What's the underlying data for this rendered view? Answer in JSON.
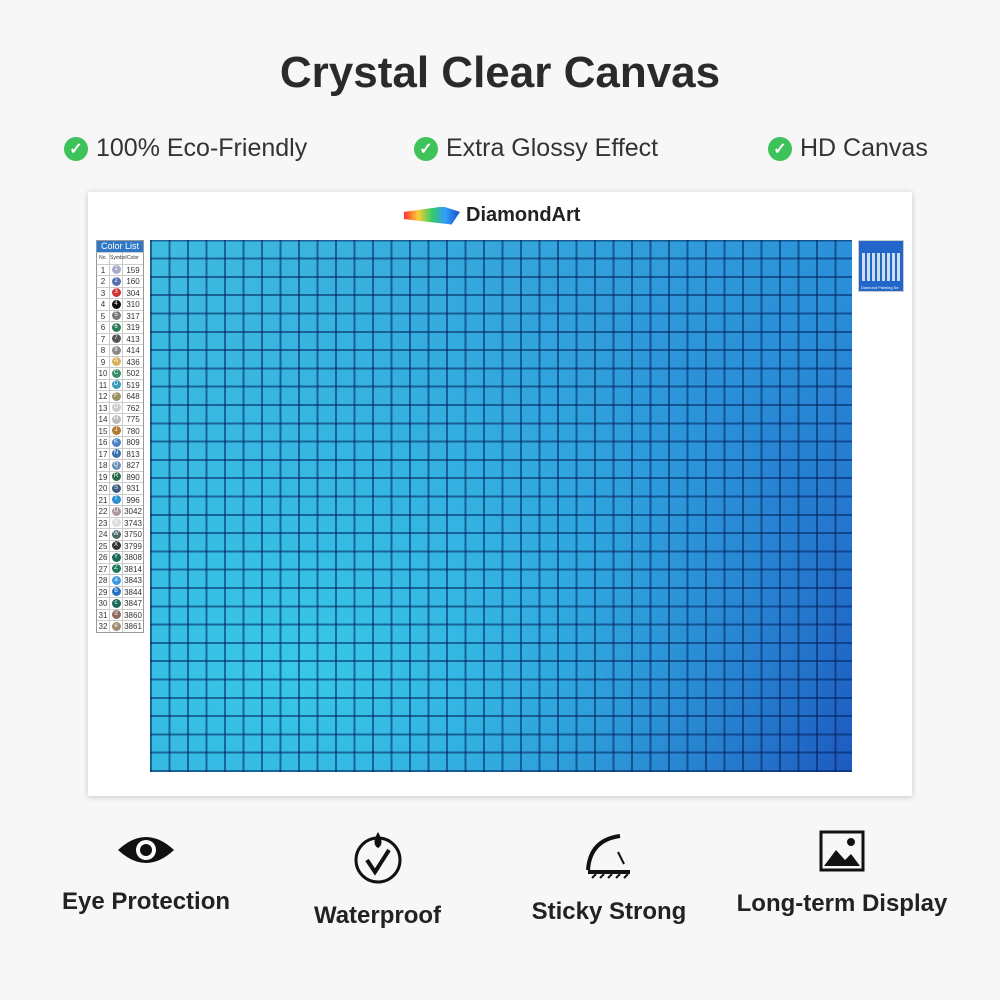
{
  "title": "Crystal Clear Canvas",
  "features": [
    "100% Eco-Friendly",
    "Extra Glossy Effect",
    "HD Canvas"
  ],
  "brand": "DiamondArt",
  "color_list": {
    "title": "Color List",
    "headers": [
      "No.",
      "Symbol",
      "Color"
    ],
    "rows": [
      [
        "1",
        "1",
        "159"
      ],
      [
        "2",
        "2",
        "160"
      ],
      [
        "3",
        "3",
        "304"
      ],
      [
        "4",
        "4",
        "310"
      ],
      [
        "5",
        "5",
        "317"
      ],
      [
        "6",
        "6",
        "319"
      ],
      [
        "7",
        "7",
        "413"
      ],
      [
        "8",
        "8",
        "414"
      ],
      [
        "9",
        "A",
        "436"
      ],
      [
        "10",
        "C",
        "502"
      ],
      [
        "11",
        "D",
        "519"
      ],
      [
        "12",
        "F",
        "648"
      ],
      [
        "13",
        "G",
        "762"
      ],
      [
        "14",
        "H",
        "775"
      ],
      [
        "15",
        "J",
        "780"
      ],
      [
        "16",
        "K",
        "809"
      ],
      [
        "17",
        "N",
        "813"
      ],
      [
        "18",
        "Q",
        "827"
      ],
      [
        "19",
        "R",
        "890"
      ],
      [
        "20",
        "S",
        "931"
      ],
      [
        "21",
        "T",
        "996"
      ],
      [
        "22",
        "U",
        "3042"
      ],
      [
        "23",
        "V",
        "3743"
      ],
      [
        "24",
        "W",
        "3750"
      ],
      [
        "25",
        "X",
        "3799"
      ],
      [
        "26",
        "Y",
        "3808"
      ],
      [
        "27",
        "Z",
        "3814"
      ],
      [
        "28",
        "a",
        "3843"
      ],
      [
        "29",
        "b",
        "3844"
      ],
      [
        "30",
        "c",
        "3847"
      ],
      [
        "31",
        "d",
        "3860"
      ],
      [
        "32",
        "e",
        "3861"
      ]
    ]
  },
  "dot_colors": [
    "#aac",
    "#5570b0",
    "#c33",
    "#111",
    "#777",
    "#2a7a55",
    "#555",
    "#888",
    "#d8b060",
    "#3a8a6a",
    "#3a9ab8",
    "#9a9060",
    "#ccc",
    "#bbb",
    "#b07a30",
    "#4a80c0",
    "#3a70b0",
    "#6a90b8",
    "#2a6a4a",
    "#3a5a80",
    "#2a90d0",
    "#a99",
    "#ddd",
    "#4a6a6a",
    "#333",
    "#1a6a5a",
    "#1a7a5a",
    "#3a9ae0",
    "#2a70c0",
    "#1a6a5a",
    "#8a6a5a",
    "#a08a70"
  ],
  "thumbnail_caption": "Diamond Painting Se",
  "bottom": [
    {
      "icon": "eye-icon",
      "label": "Eye Protection"
    },
    {
      "icon": "waterproof-icon",
      "label": "Waterproof"
    },
    {
      "icon": "sticky-icon",
      "label": "Sticky Strong"
    },
    {
      "icon": "image-icon",
      "label": "Long-term Display"
    }
  ],
  "colors": {
    "check": "#3ec25a",
    "canvas_light": "#3fbde0",
    "canvas_dark": "#1e5cc0"
  }
}
